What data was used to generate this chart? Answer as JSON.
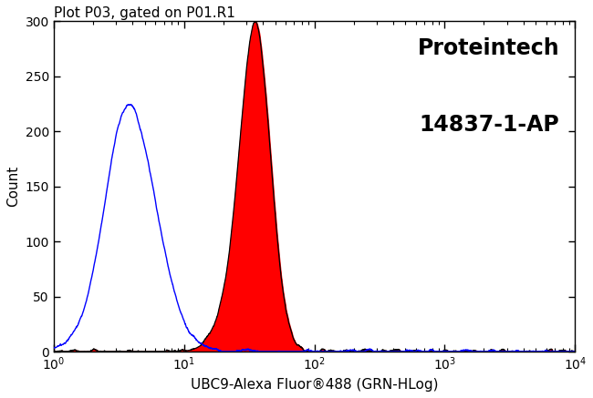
{
  "title": "Plot P03, gated on P01.R1",
  "xlabel": "UBC9-Alexa Fluor®488 (GRN-HLog)",
  "ylabel": "Count",
  "annotation_line1": "Proteintech",
  "annotation_line2": "14837-1-AP",
  "xlim_log": [
    0.0,
    4.0
  ],
  "ylim": [
    0,
    300
  ],
  "yticks": [
    0,
    50,
    100,
    150,
    200,
    250,
    300
  ],
  "blue_peak_log": 0.6,
  "blue_peak_count": 207,
  "blue_sigma_log": 0.2,
  "red_peak_log": 1.55,
  "red_peak_count": 290,
  "red_sigma_log": 0.115,
  "blue_color": "#0000ff",
  "red_fill_color": "#ff0000",
  "black_color": "#000000",
  "background_color": "#ffffff",
  "title_fontsize": 11,
  "label_fontsize": 11,
  "annotation_fontsize": 17
}
